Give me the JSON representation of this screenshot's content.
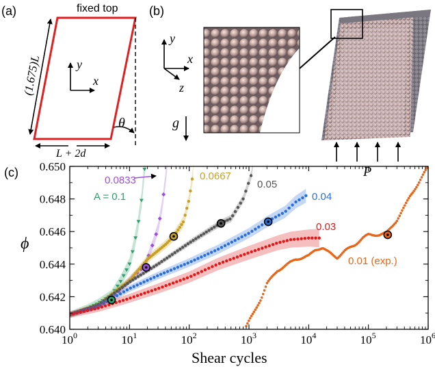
{
  "panels": {
    "a": {
      "label": "(a)",
      "fixed_top": "fixed top",
      "height_label": "(1.675)L",
      "width_label": "L + 2d",
      "angle_label": "θ",
      "axis_y": "y",
      "axis_x": "x"
    },
    "b": {
      "label": "(b)",
      "axis_y": "y",
      "axis_x": "x",
      "axis_z": "z",
      "gravity": "g",
      "pressure": "P"
    },
    "c": {
      "label": "(c)"
    }
  },
  "colors": {
    "frame_red": "#e02020",
    "A_0.1": "#2e9e6a",
    "A_0.0833": "#9b4fd6",
    "A_0.0667": "#c8a020",
    "A_0.05": "#555555",
    "A_0.04": "#2a6fd6",
    "A_0.03": "#e01818",
    "A_0.01": "#e8661a"
  },
  "chart_data": {
    "type": "scatter",
    "xlabel": "Shear cycles",
    "ylabel": "ϕ",
    "xscale": "log",
    "xlim": [
      1,
      1000000
    ],
    "ylim": [
      0.64,
      0.65
    ],
    "xticks": [
      1,
      10,
      100,
      1000,
      10000,
      100000,
      1000000
    ],
    "xtick_labels": [
      "10^0",
      "10^1",
      "10^2",
      "10^3",
      "10^4",
      "10^5",
      "10^6"
    ],
    "yticks": [
      0.64,
      0.642,
      0.644,
      0.646,
      0.648,
      0.65
    ],
    "ytick_labels": [
      "0.640",
      "0.642",
      "0.644",
      "0.646",
      "0.648",
      "0.650"
    ],
    "series": [
      {
        "name": "A = 0.1",
        "label": "A = 0.1",
        "key": "A_0.1",
        "marker": "triangle-down",
        "x": [
          1,
          2,
          3,
          5,
          7,
          10,
          12,
          14,
          16,
          18,
          20
        ],
        "y": [
          0.6409,
          0.6413,
          0.6416,
          0.6421,
          0.6429,
          0.644,
          0.6452,
          0.6465,
          0.648,
          0.65,
          0.651
        ],
        "band": 0.0004,
        "circle": {
          "x": 5,
          "y": 0.6418
        }
      },
      {
        "name": "0.0833",
        "label": "0.0833",
        "key": "A_0.0833",
        "marker": "diamond",
        "x": [
          1,
          3,
          6,
          10,
          18,
          25,
          30,
          35,
          40,
          43
        ],
        "y": [
          0.6409,
          0.6414,
          0.6422,
          0.643,
          0.6439,
          0.6453,
          0.6462,
          0.6475,
          0.6492,
          0.6503
        ],
        "band": 0.0003,
        "circle": {
          "x": 19,
          "y": 0.6438
        }
      },
      {
        "name": "0.0667",
        "label": "0.0667",
        "key": "A_0.0667",
        "marker": "line",
        "x": [
          1,
          3,
          10,
          20,
          40,
          55,
          80,
          100,
          115,
          120
        ],
        "y": [
          0.6409,
          0.6415,
          0.643,
          0.6443,
          0.6452,
          0.6457,
          0.6466,
          0.648,
          0.6495,
          0.651
        ],
        "band": 0.0003,
        "circle": {
          "x": 55,
          "y": 0.6457
        }
      },
      {
        "name": "0.05",
        "label": "0.05",
        "key": "A_0.05",
        "marker": "line",
        "x": [
          1,
          3,
          10,
          30,
          100,
          200,
          330,
          500,
          800,
          1100,
          1200
        ],
        "y": [
          0.6409,
          0.6415,
          0.6429,
          0.644,
          0.6453,
          0.646,
          0.6465,
          0.6468,
          0.648,
          0.6495,
          0.6505
        ],
        "band": 0.0002,
        "circle": {
          "x": 340,
          "y": 0.6465
        }
      },
      {
        "name": "0.04",
        "label": "0.04",
        "key": "A_0.04",
        "marker": "line",
        "x": [
          1,
          3,
          10,
          30,
          100,
          300,
          1000,
          2000,
          4000,
          6000,
          9000
        ],
        "y": [
          0.6409,
          0.6414,
          0.6425,
          0.6433,
          0.6441,
          0.6449,
          0.6459,
          0.6466,
          0.6472,
          0.6478,
          0.6482
        ],
        "band": 0.0003,
        "circle": {
          "x": 2100,
          "y": 0.6466
        }
      },
      {
        "name": "0.03",
        "label": "0.03",
        "key": "A_0.03",
        "marker": "line",
        "x": [
          1,
          3,
          10,
          30,
          100,
          300,
          1000,
          3000,
          5000,
          10000,
          15000
        ],
        "y": [
          0.6409,
          0.6413,
          0.6419,
          0.6425,
          0.6432,
          0.644,
          0.6447,
          0.6453,
          0.6455,
          0.6456,
          0.6456
        ],
        "band": 0.0004
      },
      {
        "name": "0.01 (exp.)",
        "label": "0.01 (exp.)",
        "key": "A_0.01",
        "marker": "dot",
        "x": [
          900,
          1200,
          1600,
          2000,
          3000,
          4500,
          6000,
          8000,
          10000,
          13000,
          17000,
          20000,
          30000,
          40000,
          60000,
          80000,
          100000,
          150000,
          200000,
          300000,
          400000,
          500000,
          700000,
          1000000
        ],
        "y": [
          0.6402,
          0.641,
          0.6419,
          0.6428,
          0.6436,
          0.644,
          0.6443,
          0.6444,
          0.6445,
          0.6449,
          0.645,
          0.6448,
          0.6444,
          0.6448,
          0.6452,
          0.6456,
          0.6458,
          0.6458,
          0.6459,
          0.6467,
          0.6475,
          0.6482,
          0.649,
          0.65
        ],
        "band": 0,
        "circle": {
          "x": 210000,
          "y": 0.6458
        }
      }
    ]
  }
}
